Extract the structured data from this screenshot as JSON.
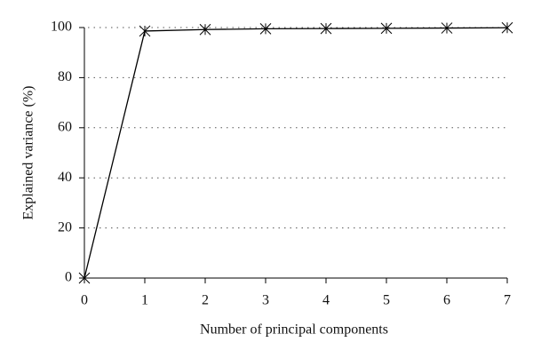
{
  "chart_data": {
    "type": "line",
    "x_label": "Number of principal components",
    "y_label": "Explained variance (%)",
    "x": [
      0,
      1,
      2,
      3,
      4,
      5,
      6,
      7
    ],
    "series": [
      {
        "name": "Explained variance",
        "color": "#000000",
        "values": [
          0,
          98.6,
          99.2,
          99.5,
          99.6,
          99.7,
          99.8,
          99.9
        ]
      }
    ],
    "xlim": [
      0,
      7
    ],
    "xticks": [
      0,
      1,
      2,
      3,
      4,
      5,
      6,
      7
    ],
    "ylim": [
      0,
      100
    ],
    "yticks": [
      0,
      20,
      40,
      60,
      80,
      100
    ],
    "grid": true
  }
}
